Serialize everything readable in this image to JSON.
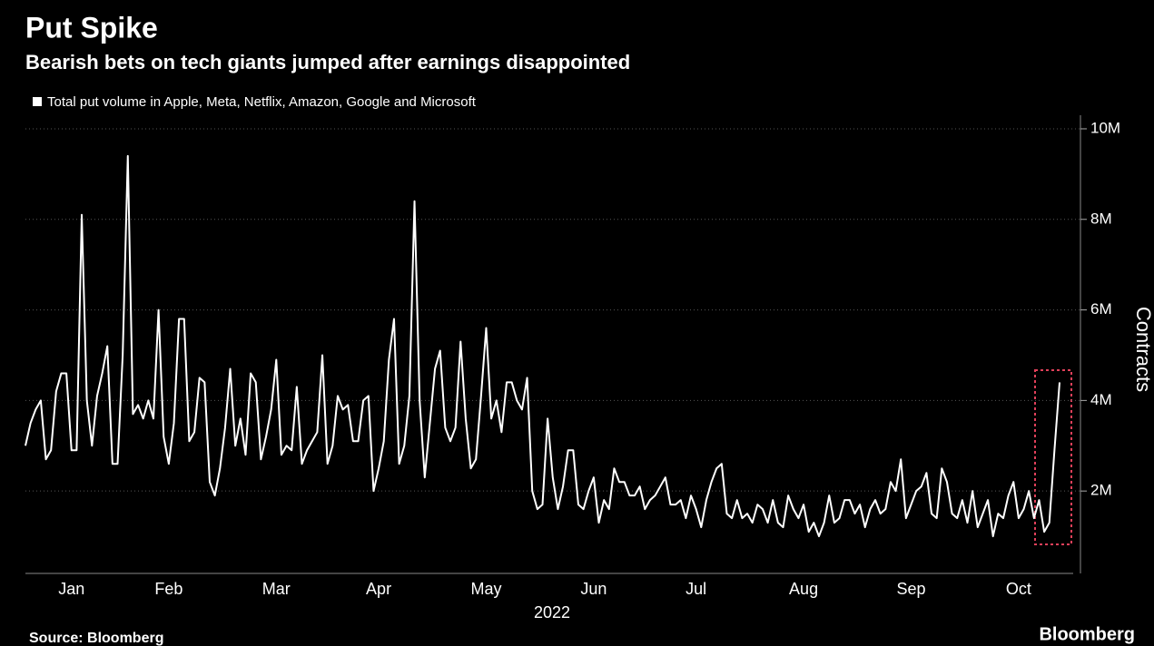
{
  "chart_data": {
    "type": "line",
    "title": "Put Spike",
    "subtitle": "Bearish bets on tech giants jumped after earnings disappointed",
    "ylabel": "Contracts",
    "xlabel": "2022",
    "source": "Source: Bloomberg",
    "brand": "Bloomberg",
    "categories": [
      null,
      null,
      null,
      null,
      null,
      null,
      null,
      null,
      null,
      "Jan",
      null,
      null,
      null,
      null,
      null,
      null,
      null,
      null,
      null,
      null,
      null,
      null,
      null,
      null,
      null,
      null,
      null,
      null,
      "Feb",
      null,
      null,
      null,
      null,
      null,
      null,
      null,
      null,
      null,
      null,
      null,
      null,
      null,
      null,
      null,
      null,
      null,
      null,
      null,
      null,
      "Mar",
      null,
      null,
      null,
      null,
      null,
      null,
      null,
      null,
      null,
      null,
      null,
      null,
      null,
      null,
      null,
      null,
      null,
      null,
      null,
      "Apr",
      null,
      null,
      null,
      null,
      null,
      null,
      null,
      null,
      null,
      null,
      null,
      null,
      null,
      null,
      null,
      null,
      null,
      null,
      null,
      null,
      "May",
      null,
      null,
      null,
      null,
      null,
      null,
      null,
      null,
      null,
      null,
      null,
      null,
      null,
      null,
      null,
      null,
      null,
      null,
      null,
      null,
      "Jun",
      null,
      null,
      null,
      null,
      null,
      null,
      null,
      null,
      null,
      null,
      null,
      null,
      null,
      null,
      null,
      null,
      null,
      null,
      null,
      "Jul",
      null,
      null,
      null,
      null,
      null,
      null,
      null,
      null,
      null,
      null,
      null,
      null,
      null,
      null,
      null,
      null,
      null,
      null,
      null,
      null,
      "Aug",
      null,
      null,
      null,
      null,
      null,
      null,
      null,
      null,
      null,
      null,
      null,
      null,
      null,
      null,
      null,
      null,
      null,
      null,
      null,
      null,
      "Sep",
      null,
      null,
      null,
      null,
      null,
      null,
      null,
      null,
      null,
      null,
      null,
      null,
      null,
      null,
      null,
      null,
      null,
      null,
      null,
      null,
      "Oct",
      null,
      null,
      null,
      null,
      null,
      null,
      null,
      null
    ],
    "series": [
      {
        "name": "Total put volume in Apple, Meta, Netflix, Amazon, Google and Microsoft",
        "color": "#ffffff",
        "values": [
          3.0,
          3.5,
          3.8,
          4.0,
          2.7,
          2.9,
          4.2,
          4.6,
          4.6,
          2.9,
          2.9,
          8.1,
          4.0,
          3.0,
          4.1,
          4.6,
          5.2,
          2.6,
          2.6,
          5.0,
          9.4,
          3.7,
          3.9,
          3.6,
          4.0,
          3.6,
          6.0,
          3.2,
          2.6,
          3.5,
          5.8,
          5.8,
          3.1,
          3.3,
          4.5,
          4.4,
          2.2,
          1.9,
          2.5,
          3.4,
          4.7,
          3.0,
          3.6,
          2.8,
          4.6,
          4.4,
          2.7,
          3.2,
          3.8,
          4.9,
          2.8,
          3.0,
          2.9,
          4.3,
          2.6,
          2.9,
          3.1,
          3.3,
          5.0,
          2.6,
          3.0,
          4.1,
          3.8,
          3.9,
          3.1,
          3.1,
          4.0,
          4.1,
          2.0,
          2.5,
          3.1,
          4.9,
          5.8,
          2.6,
          3.0,
          4.1,
          8.4,
          4.0,
          2.3,
          3.5,
          4.7,
          5.1,
          3.4,
          3.1,
          3.4,
          5.3,
          3.6,
          2.5,
          2.7,
          4.1,
          5.6,
          3.6,
          4.0,
          3.3,
          4.4,
          4.4,
          4.0,
          3.8,
          4.5,
          2.0,
          1.6,
          1.7,
          3.6,
          2.3,
          1.6,
          2.1,
          2.9,
          2.9,
          1.7,
          1.6,
          2.0,
          2.3,
          1.3,
          1.8,
          1.6,
          2.5,
          2.2,
          2.2,
          1.9,
          1.9,
          2.1,
          1.6,
          1.8,
          1.9,
          2.1,
          2.3,
          1.7,
          1.7,
          1.8,
          1.4,
          1.9,
          1.6,
          1.2,
          1.8,
          2.2,
          2.5,
          2.6,
          1.5,
          1.4,
          1.8,
          1.4,
          1.5,
          1.3,
          1.7,
          1.6,
          1.3,
          1.8,
          1.3,
          1.2,
          1.9,
          1.6,
          1.4,
          1.7,
          1.1,
          1.3,
          1.0,
          1.3,
          1.9,
          1.3,
          1.4,
          1.8,
          1.8,
          1.5,
          1.7,
          1.2,
          1.6,
          1.8,
          1.5,
          1.6,
          2.2,
          2.0,
          2.7,
          1.4,
          1.7,
          2.0,
          2.1,
          2.4,
          1.5,
          1.4,
          2.5,
          2.2,
          1.5,
          1.4,
          1.8,
          1.3,
          2.0,
          1.2,
          1.5,
          1.8,
          1.0,
          1.5,
          1.4,
          1.9,
          2.2,
          1.4,
          1.6,
          2.0,
          1.4,
          1.8,
          1.1,
          1.3,
          2.9,
          4.4
        ]
      }
    ],
    "ylim": [
      0.2,
      10.3
    ],
    "yticks": [
      {
        "value": 2,
        "label": "2M"
      },
      {
        "value": 4,
        "label": "4M"
      },
      {
        "value": 6,
        "label": "6M"
      },
      {
        "value": 8,
        "label": "8M"
      },
      {
        "value": 10,
        "label": "10M"
      }
    ],
    "grid": true
  }
}
